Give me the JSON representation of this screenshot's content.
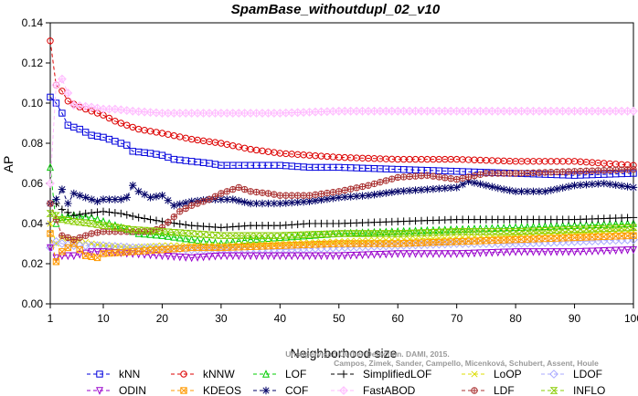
{
  "chart_data": {
    "type": "line",
    "title": "SpamBase_withoutdupl_02_v10",
    "xlabel": "Neighborhood size",
    "ylabel": "AP",
    "xlim": [
      1,
      100
    ],
    "ylim": [
      0.0,
      0.14
    ],
    "xticks": [
      1,
      10,
      20,
      30,
      40,
      50,
      60,
      70,
      80,
      90,
      100
    ],
    "yticks": [
      0.0,
      0.02,
      0.04,
      0.06,
      0.08,
      0.1,
      0.12,
      0.14
    ],
    "ytick_labels": [
      "0.00",
      "0.02",
      "0.04",
      "0.06",
      "0.08",
      "0.10",
      "0.12",
      "0.14"
    ],
    "grid": false,
    "legend_position": "bottom",
    "watermark": [
      "Campos, Zimek, Sander, Campello, Micenková, Schubert, Assent, Houle",
      "Unsupervised Outlier Detection. DAMI, 2015."
    ],
    "series": [
      {
        "name": "kNN",
        "color": "#0000dd",
        "marker": "square",
        "points": [
          [
            1,
            0.103
          ],
          [
            2,
            0.1
          ],
          [
            3,
            0.095
          ],
          [
            4,
            0.089
          ],
          [
            6,
            0.087
          ],
          [
            8,
            0.084
          ],
          [
            10,
            0.083
          ],
          [
            12,
            0.081
          ],
          [
            14,
            0.079
          ],
          [
            15,
            0.076
          ],
          [
            18,
            0.075
          ],
          [
            20,
            0.074
          ],
          [
            22,
            0.072
          ],
          [
            25,
            0.071
          ],
          [
            28,
            0.07
          ],
          [
            30,
            0.069
          ],
          [
            35,
            0.069
          ],
          [
            40,
            0.069
          ],
          [
            45,
            0.068
          ],
          [
            50,
            0.068
          ],
          [
            60,
            0.067
          ],
          [
            70,
            0.066
          ],
          [
            80,
            0.065
          ],
          [
            90,
            0.064
          ],
          [
            100,
            0.065
          ]
        ]
      },
      {
        "name": "kNNW",
        "color": "#dd0000",
        "marker": "circle",
        "points": [
          [
            1,
            0.131
          ],
          [
            2,
            0.109
          ],
          [
            3,
            0.106
          ],
          [
            4,
            0.101
          ],
          [
            6,
            0.098
          ],
          [
            8,
            0.096
          ],
          [
            10,
            0.094
          ],
          [
            12,
            0.091
          ],
          [
            14,
            0.089
          ],
          [
            16,
            0.087
          ],
          [
            20,
            0.085
          ],
          [
            25,
            0.082
          ],
          [
            30,
            0.08
          ],
          [
            35,
            0.077
          ],
          [
            40,
            0.075
          ],
          [
            45,
            0.074
          ],
          [
            50,
            0.073
          ],
          [
            60,
            0.072
          ],
          [
            70,
            0.072
          ],
          [
            80,
            0.071
          ],
          [
            90,
            0.071
          ],
          [
            95,
            0.07
          ],
          [
            100,
            0.069
          ]
        ]
      },
      {
        "name": "LOF",
        "color": "#00cc00",
        "marker": "triangle",
        "points": [
          [
            1,
            0.068
          ],
          [
            2,
            0.04
          ],
          [
            3,
            0.043
          ],
          [
            5,
            0.044
          ],
          [
            8,
            0.043
          ],
          [
            10,
            0.041
          ],
          [
            13,
            0.038
          ],
          [
            16,
            0.035
          ],
          [
            20,
            0.034
          ],
          [
            25,
            0.032
          ],
          [
            30,
            0.03
          ],
          [
            35,
            0.032
          ],
          [
            40,
            0.033
          ],
          [
            45,
            0.034
          ],
          [
            50,
            0.035
          ],
          [
            60,
            0.036
          ],
          [
            70,
            0.037
          ],
          [
            80,
            0.038
          ],
          [
            90,
            0.039
          ],
          [
            100,
            0.04
          ]
        ]
      },
      {
        "name": "SimplifiedLOF",
        "color": "#000000",
        "marker": "plus",
        "points": [
          [
            1,
            0.05
          ],
          [
            2,
            0.05
          ],
          [
            3,
            0.047
          ],
          [
            5,
            0.044
          ],
          [
            7,
            0.045
          ],
          [
            10,
            0.046
          ],
          [
            13,
            0.045
          ],
          [
            16,
            0.043
          ],
          [
            20,
            0.041
          ],
          [
            25,
            0.039
          ],
          [
            30,
            0.038
          ],
          [
            35,
            0.039
          ],
          [
            40,
            0.039
          ],
          [
            45,
            0.04
          ],
          [
            50,
            0.04
          ],
          [
            60,
            0.041
          ],
          [
            70,
            0.042
          ],
          [
            80,
            0.042
          ],
          [
            90,
            0.042
          ],
          [
            100,
            0.043
          ]
        ]
      },
      {
        "name": "LoOP",
        "color": "#dddd00",
        "marker": "x",
        "points": [
          [
            1,
            0.04
          ],
          [
            2,
            0.03
          ],
          [
            3,
            0.033
          ],
          [
            5,
            0.032
          ],
          [
            8,
            0.03
          ],
          [
            10,
            0.029
          ],
          [
            15,
            0.028
          ],
          [
            20,
            0.029
          ],
          [
            25,
            0.029
          ],
          [
            30,
            0.029
          ],
          [
            40,
            0.03
          ],
          [
            50,
            0.031
          ],
          [
            60,
            0.032
          ],
          [
            70,
            0.033
          ],
          [
            80,
            0.034
          ],
          [
            90,
            0.035
          ],
          [
            100,
            0.036
          ]
        ]
      },
      {
        "name": "LDOF",
        "color": "#aaaaff",
        "marker": "diamond",
        "points": [
          [
            1,
            0.028
          ],
          [
            2,
            0.031
          ],
          [
            3,
            0.03
          ],
          [
            5,
            0.029
          ],
          [
            10,
            0.029
          ],
          [
            15,
            0.028
          ],
          [
            20,
            0.028
          ],
          [
            25,
            0.027
          ],
          [
            30,
            0.027
          ],
          [
            40,
            0.027
          ],
          [
            50,
            0.028
          ],
          [
            60,
            0.029
          ],
          [
            70,
            0.03
          ],
          [
            80,
            0.03
          ],
          [
            90,
            0.031
          ],
          [
            100,
            0.032
          ]
        ]
      },
      {
        "name": "ODIN",
        "color": "#9900cc",
        "marker": "triangle-down",
        "points": [
          [
            1,
            0.028
          ],
          [
            2,
            0.023
          ],
          [
            3,
            0.024
          ],
          [
            5,
            0.024
          ],
          [
            8,
            0.026
          ],
          [
            10,
            0.026
          ],
          [
            15,
            0.025
          ],
          [
            20,
            0.024
          ],
          [
            25,
            0.023
          ],
          [
            30,
            0.024
          ],
          [
            40,
            0.024
          ],
          [
            50,
            0.024
          ],
          [
            60,
            0.025
          ],
          [
            70,
            0.025
          ],
          [
            80,
            0.026
          ],
          [
            90,
            0.026
          ],
          [
            100,
            0.027
          ]
        ]
      },
      {
        "name": "KDEOS",
        "color": "#ff9900",
        "marker": "boxed",
        "points": [
          [
            1,
            0.035
          ],
          [
            2,
            0.021
          ],
          [
            3,
            0.026
          ],
          [
            5,
            0.03
          ],
          [
            7,
            0.024
          ],
          [
            9,
            0.023
          ],
          [
            10,
            0.025
          ],
          [
            15,
            0.026
          ],
          [
            20,
            0.027
          ],
          [
            25,
            0.028
          ],
          [
            30,
            0.028
          ],
          [
            40,
            0.029
          ],
          [
            50,
            0.03
          ],
          [
            60,
            0.03
          ],
          [
            70,
            0.031
          ],
          [
            80,
            0.032
          ],
          [
            90,
            0.033
          ],
          [
            100,
            0.034
          ]
        ]
      },
      {
        "name": "COF",
        "color": "#000066",
        "marker": "asterisk",
        "points": [
          [
            1,
            0.05
          ],
          [
            2,
            0.052
          ],
          [
            3,
            0.057
          ],
          [
            4,
            0.05
          ],
          [
            5,
            0.055
          ],
          [
            7,
            0.053
          ],
          [
            9,
            0.051
          ],
          [
            10,
            0.052
          ],
          [
            13,
            0.052
          ],
          [
            14,
            0.053
          ],
          [
            15,
            0.059
          ],
          [
            16,
            0.056
          ],
          [
            18,
            0.053
          ],
          [
            20,
            0.054
          ],
          [
            22,
            0.049
          ],
          [
            25,
            0.051
          ],
          [
            28,
            0.052
          ],
          [
            30,
            0.052
          ],
          [
            32,
            0.052
          ],
          [
            35,
            0.05
          ],
          [
            40,
            0.05
          ],
          [
            45,
            0.051
          ],
          [
            50,
            0.053
          ],
          [
            55,
            0.054
          ],
          [
            60,
            0.056
          ],
          [
            65,
            0.057
          ],
          [
            70,
            0.058
          ],
          [
            72,
            0.061
          ],
          [
            75,
            0.059
          ],
          [
            78,
            0.057
          ],
          [
            80,
            0.056
          ],
          [
            85,
            0.056
          ],
          [
            90,
            0.059
          ],
          [
            95,
            0.06
          ],
          [
            100,
            0.058
          ]
        ]
      },
      {
        "name": "LDF",
        "color": "#aa3333",
        "marker": "circle-plus",
        "points": [
          [
            1,
            0.05
          ],
          [
            3,
            0.034
          ],
          [
            5,
            0.032
          ],
          [
            8,
            0.035
          ],
          [
            10,
            0.036
          ],
          [
            15,
            0.036
          ],
          [
            18,
            0.036
          ],
          [
            20,
            0.038
          ],
          [
            23,
            0.046
          ],
          [
            25,
            0.049
          ],
          [
            28,
            0.052
          ],
          [
            30,
            0.055
          ],
          [
            33,
            0.058
          ],
          [
            35,
            0.056
          ],
          [
            38,
            0.055
          ],
          [
            40,
            0.054
          ],
          [
            45,
            0.054
          ],
          [
            50,
            0.056
          ],
          [
            55,
            0.059
          ],
          [
            60,
            0.063
          ],
          [
            65,
            0.064
          ],
          [
            70,
            0.062
          ],
          [
            75,
            0.065
          ],
          [
            80,
            0.065
          ],
          [
            90,
            0.066
          ],
          [
            100,
            0.067
          ]
        ]
      },
      {
        "name": "FastABOD",
        "color": "#ffbbff",
        "marker": "diamond-star",
        "points": [
          [
            1,
            0.06
          ],
          [
            2,
            0.109
          ],
          [
            3,
            0.112
          ],
          [
            4,
            0.105
          ],
          [
            5,
            0.099
          ],
          [
            8,
            0.098
          ],
          [
            10,
            0.097
          ],
          [
            12,
            0.097
          ],
          [
            15,
            0.096
          ],
          [
            20,
            0.095
          ],
          [
            30,
            0.095
          ],
          [
            40,
            0.095
          ],
          [
            50,
            0.096
          ],
          [
            60,
            0.096
          ],
          [
            70,
            0.096
          ],
          [
            80,
            0.096
          ],
          [
            90,
            0.096
          ],
          [
            100,
            0.096
          ]
        ]
      },
      {
        "name": "INFLO",
        "color": "#88cc00",
        "marker": "hourglass",
        "points": [
          [
            1,
            0.045
          ],
          [
            2,
            0.044
          ],
          [
            3,
            0.042
          ],
          [
            5,
            0.041
          ],
          [
            8,
            0.04
          ],
          [
            10,
            0.039
          ],
          [
            15,
            0.037
          ],
          [
            20,
            0.036
          ],
          [
            25,
            0.035
          ],
          [
            30,
            0.034
          ],
          [
            40,
            0.034
          ],
          [
            50,
            0.035
          ],
          [
            60,
            0.035
          ],
          [
            70,
            0.036
          ],
          [
            80,
            0.036
          ],
          [
            90,
            0.037
          ],
          [
            100,
            0.038
          ]
        ]
      }
    ],
    "legend_order": [
      "kNN",
      "kNNW",
      "LOF",
      "SimplifiedLOF",
      "LoOP",
      "LDOF",
      "ODIN",
      "KDEOS",
      "COF",
      "FastABOD",
      "LDF",
      "INFLO"
    ]
  }
}
